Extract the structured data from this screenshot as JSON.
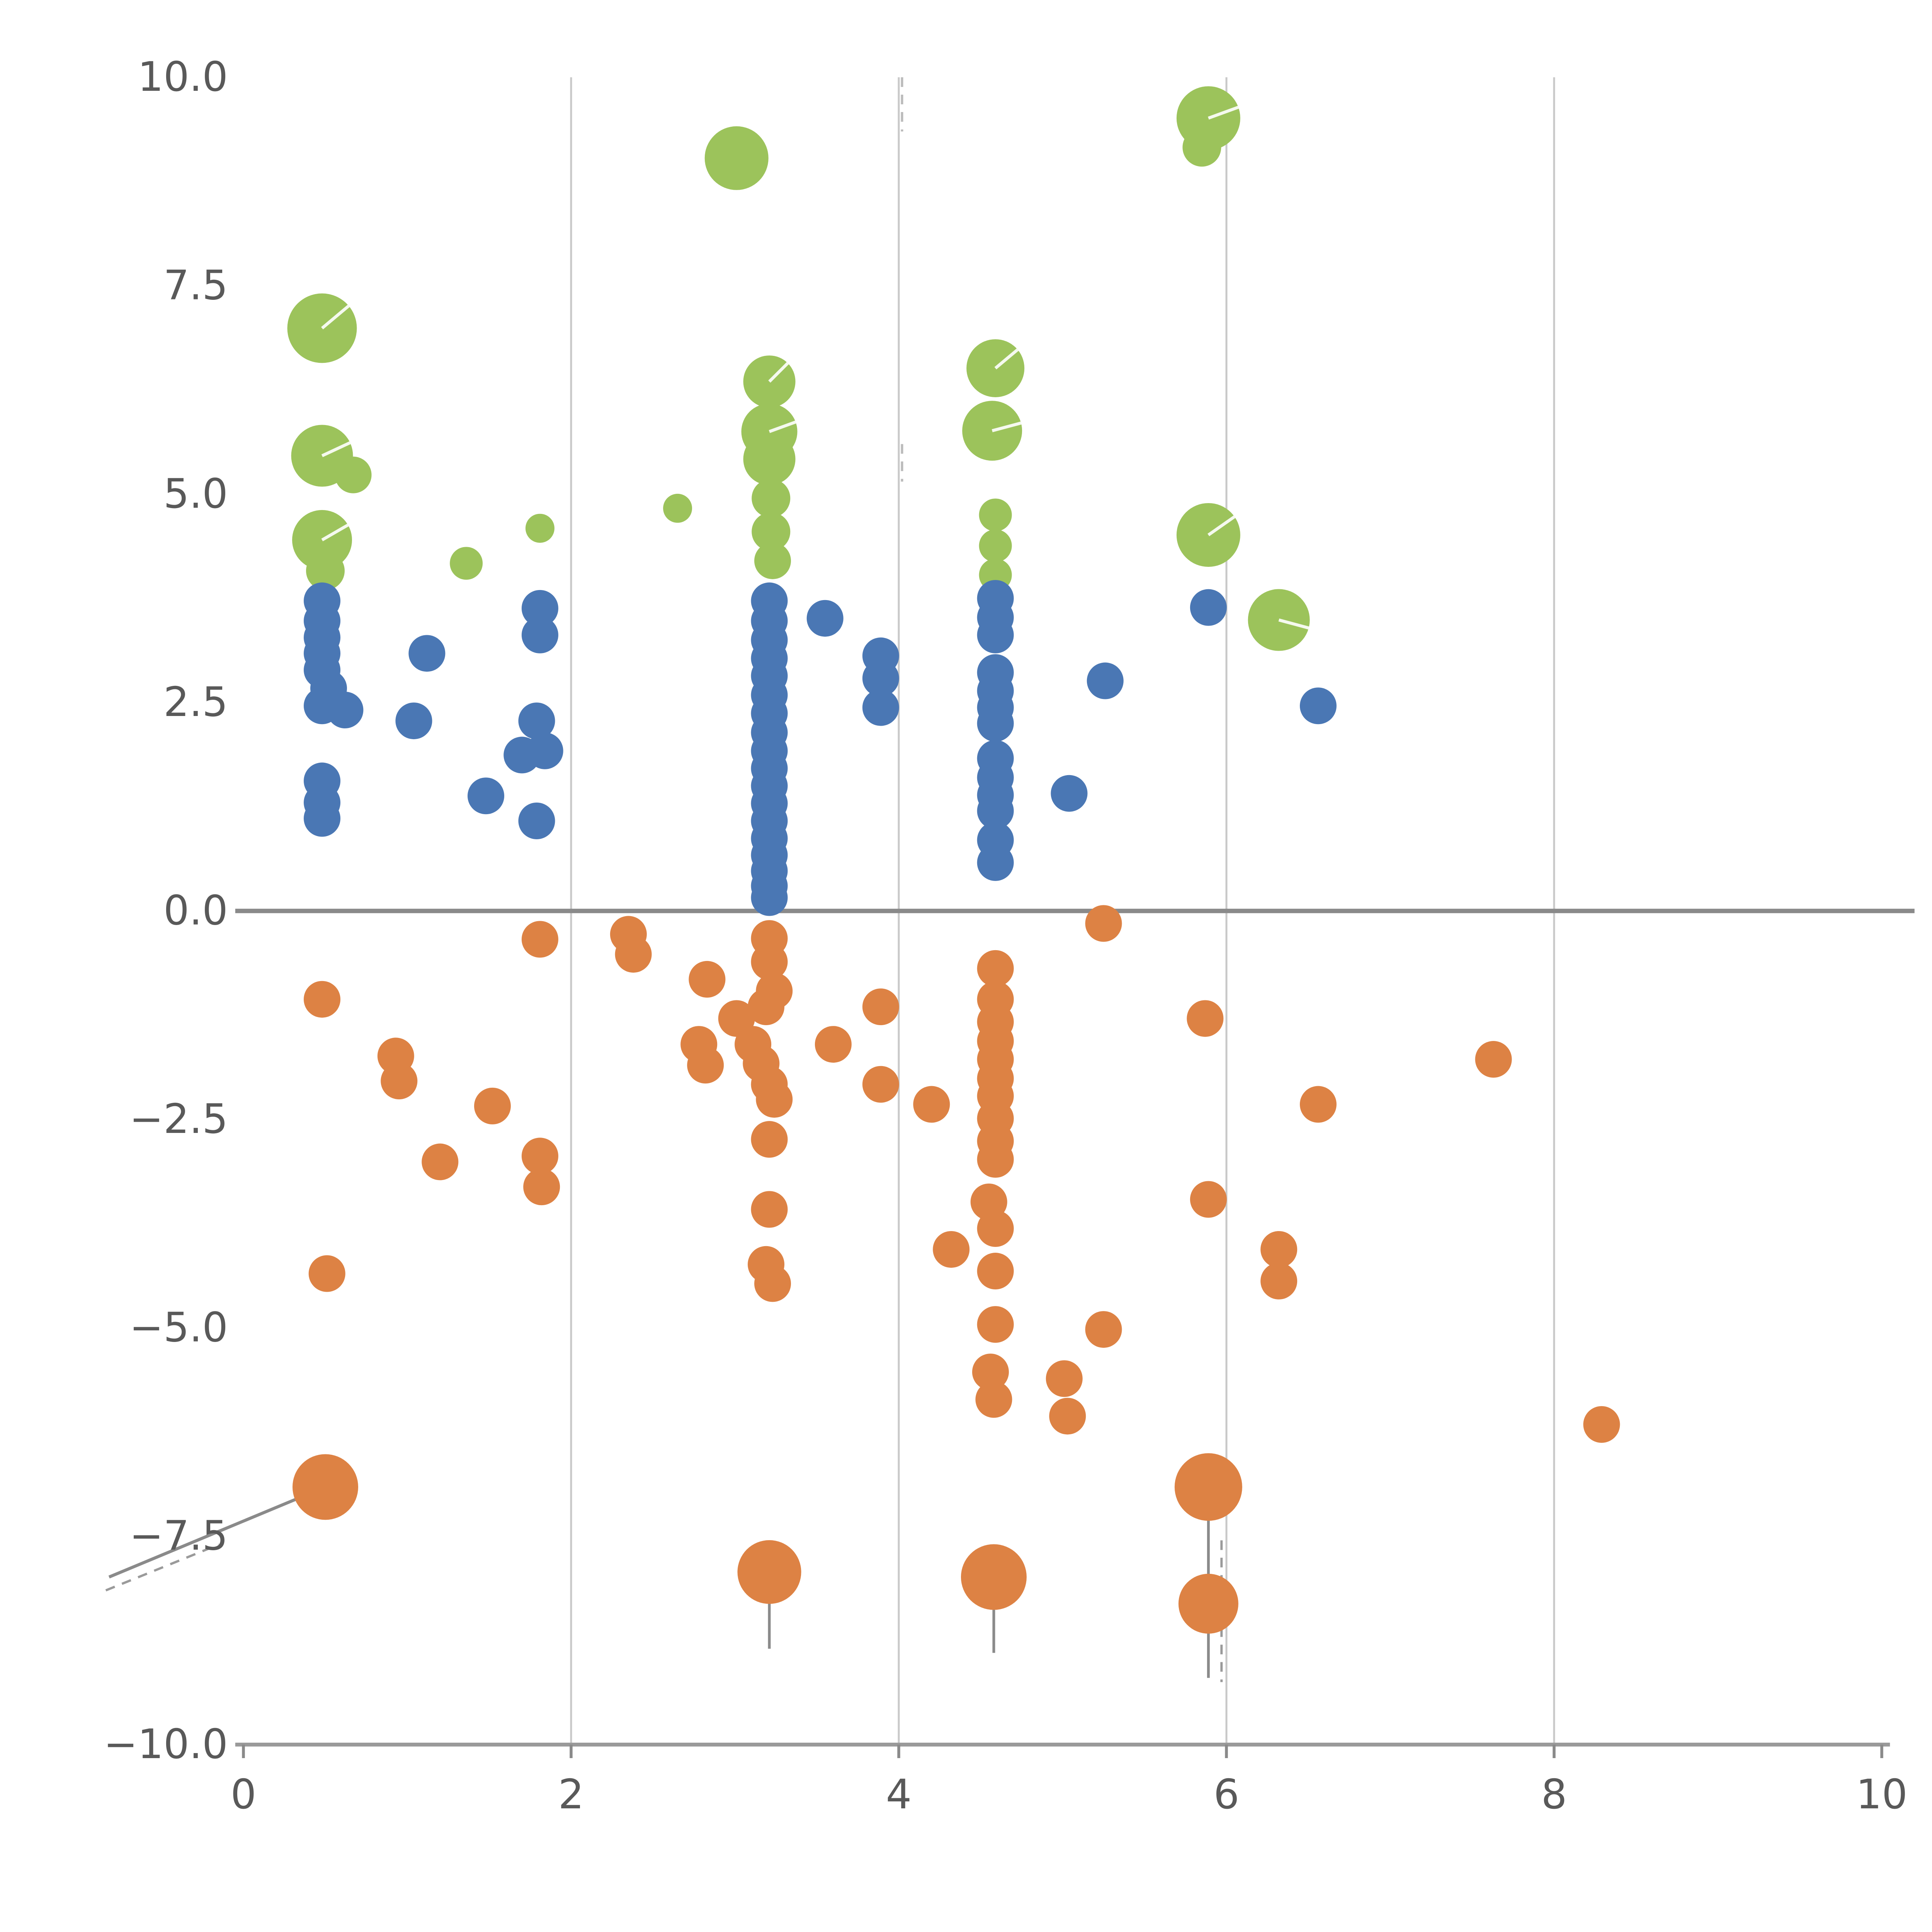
{
  "chart_data": {
    "type": "scatter",
    "title": "",
    "xlabel": "",
    "ylabel": "",
    "xlim": [
      0,
      10
    ],
    "ylim": [
      -10,
      10
    ],
    "x_ticks": [
      0,
      2,
      4,
      6,
      8,
      10
    ],
    "x_tick_labels": [
      "0",
      "2",
      "4",
      "6",
      "8",
      "10"
    ],
    "y_ticks": [
      10.0,
      7.5,
      5.0,
      2.5,
      0.0,
      -2.5,
      -5.0,
      -7.5,
      -10.0
    ],
    "y_tick_labels": [
      "10.0",
      "7.5",
      "5.0",
      "2.5",
      "0.0",
      "−2.5",
      "−5.0",
      "−7.5",
      "−10.0"
    ],
    "legend": "none",
    "grid": {
      "x_lines": [
        2,
        4,
        6,
        8
      ],
      "color": "#c9c9c9",
      "width": 1.0
    },
    "zero_line": {
      "y": 0,
      "x_start": -0.05,
      "x_end": 10.2,
      "color": "#8a8a8a",
      "width": 2.3
    },
    "axis": {
      "spine_color": "#9a9a9a",
      "spine_width": 2.0,
      "tick_color": "#8a8a8a",
      "tick_length": 7,
      "label_color": "#595959",
      "label_size": 21
    },
    "point_format": "[x, y, radius?, notch_angle_deg?]",
    "series": [
      {
        "name": "green-bubbles",
        "color": "#9cc35b",
        "r_default": 9.5,
        "points": [
          [
            0.48,
            6.99,
            18,
            40
          ],
          [
            0.48,
            5.46,
            16,
            25
          ],
          [
            0.67,
            5.23,
            9.5
          ],
          [
            0.48,
            4.45,
            15.5,
            30
          ],
          [
            0.5,
            4.08,
            10
          ],
          [
            1.36,
            4.17,
            8.5
          ],
          [
            1.81,
            4.59,
            7.5
          ],
          [
            2.65,
            4.83,
            7.5
          ],
          [
            3.01,
            9.03,
            16.5
          ],
          [
            3.21,
            6.35,
            13.5,
            45
          ],
          [
            3.21,
            5.75,
            14.5,
            20
          ],
          [
            3.21,
            5.42,
            13.5
          ],
          [
            3.22,
            4.95,
            10
          ],
          [
            3.22,
            4.55,
            10
          ],
          [
            3.23,
            4.2,
            9.5
          ],
          [
            4.59,
            6.51,
            15,
            40
          ],
          [
            4.57,
            5.76,
            15.5,
            15
          ],
          [
            4.59,
            4.75,
            8.5
          ],
          [
            4.59,
            4.38,
            8.5
          ],
          [
            4.59,
            4.03,
            8.5
          ],
          [
            5.89,
            9.51,
            16.5,
            20
          ],
          [
            5.85,
            9.16,
            10
          ],
          [
            5.89,
            4.51,
            16.5,
            35
          ],
          [
            6.32,
            3.49,
            16,
            -15
          ]
        ]
      },
      {
        "name": "blue-dots",
        "color": "#4a77b4",
        "r_default": 9.5,
        "points": [
          [
            0.48,
            3.72
          ],
          [
            0.48,
            3.48
          ],
          [
            0.48,
            3.28
          ],
          [
            0.48,
            3.09
          ],
          [
            0.48,
            2.89
          ],
          [
            0.52,
            2.67
          ],
          [
            0.48,
            2.46
          ],
          [
            0.62,
            2.41
          ],
          [
            0.48,
            1.56
          ],
          [
            0.48,
            1.3
          ],
          [
            0.48,
            1.11
          ],
          [
            1.12,
            3.09
          ],
          [
            1.04,
            2.28
          ],
          [
            1.48,
            1.38
          ],
          [
            1.81,
            3.63
          ],
          [
            1.81,
            3.31
          ],
          [
            1.79,
            2.28
          ],
          [
            1.7,
            1.87
          ],
          [
            1.84,
            1.92
          ],
          [
            1.79,
            1.08
          ],
          [
            3.21,
            3.72
          ],
          [
            3.21,
            3.48
          ],
          [
            3.21,
            3.25
          ],
          [
            3.21,
            3.03
          ],
          [
            3.21,
            2.82
          ],
          [
            3.21,
            2.59
          ],
          [
            3.21,
            2.37
          ],
          [
            3.21,
            2.14
          ],
          [
            3.21,
            1.92
          ],
          [
            3.21,
            1.71
          ],
          [
            3.21,
            1.5
          ],
          [
            3.21,
            1.29
          ],
          [
            3.21,
            1.08
          ],
          [
            3.21,
            0.87
          ],
          [
            3.21,
            0.67
          ],
          [
            3.21,
            0.48
          ],
          [
            3.21,
            0.3
          ],
          [
            3.21,
            0.16
          ],
          [
            3.55,
            3.51
          ],
          [
            3.89,
            3.06
          ],
          [
            3.89,
            2.79
          ],
          [
            3.89,
            2.44
          ],
          [
            4.59,
            3.75
          ],
          [
            4.59,
            3.52
          ],
          [
            4.59,
            3.31
          ],
          [
            4.59,
            2.86
          ],
          [
            4.59,
            2.64
          ],
          [
            4.59,
            2.44
          ],
          [
            4.59,
            2.25
          ],
          [
            4.59,
            1.83
          ],
          [
            4.59,
            1.6
          ],
          [
            4.59,
            1.39
          ],
          [
            4.59,
            1.2
          ],
          [
            4.59,
            0.85
          ],
          [
            4.59,
            0.58
          ],
          [
            5.04,
            1.41
          ],
          [
            5.26,
            2.76
          ],
          [
            5.89,
            3.64
          ],
          [
            6.56,
            2.46
          ]
        ]
      },
      {
        "name": "orange-dots",
        "color": "#dd8244",
        "r_default": 9.5,
        "points": [
          [
            0.48,
            -1.06
          ],
          [
            0.51,
            -4.35
          ],
          [
            0.5,
            -6.91,
            17
          ],
          [
            0.93,
            -1.74
          ],
          [
            0.95,
            -2.04
          ],
          [
            1.2,
            -3.01
          ],
          [
            1.52,
            -2.34
          ],
          [
            1.81,
            -0.34
          ],
          [
            1.81,
            -2.94
          ],
          [
            1.82,
            -3.31
          ],
          [
            2.35,
            -0.28
          ],
          [
            2.38,
            -0.52
          ],
          [
            2.83,
            -0.82
          ],
          [
            2.78,
            -1.6
          ],
          [
            2.82,
            -1.85
          ],
          [
            3.01,
            -1.29
          ],
          [
            3.21,
            -0.33
          ],
          [
            3.21,
            -0.61
          ],
          [
            3.24,
            -0.96
          ],
          [
            3.19,
            -1.15
          ],
          [
            3.11,
            -1.6
          ],
          [
            3.16,
            -1.83
          ],
          [
            3.21,
            -2.08
          ],
          [
            3.24,
            -2.26
          ],
          [
            3.21,
            -2.74
          ],
          [
            3.21,
            -3.58
          ],
          [
            3.19,
            -4.24
          ],
          [
            3.23,
            -4.47
          ],
          [
            3.21,
            -7.93,
            16.5
          ],
          [
            3.6,
            -1.6
          ],
          [
            3.89,
            -1.15
          ],
          [
            3.89,
            -2.08
          ],
          [
            4.2,
            -2.32
          ],
          [
            4.32,
            -4.06
          ],
          [
            4.59,
            -0.69
          ],
          [
            4.59,
            -1.06
          ],
          [
            4.59,
            -1.33
          ],
          [
            4.59,
            -1.56
          ],
          [
            4.59,
            -1.78
          ],
          [
            4.59,
            -2.01
          ],
          [
            4.59,
            -2.22
          ],
          [
            4.59,
            -2.49
          ],
          [
            4.59,
            -2.76
          ],
          [
            4.59,
            -2.98
          ],
          [
            4.55,
            -3.49
          ],
          [
            4.59,
            -3.81
          ],
          [
            4.59,
            -4.32
          ],
          [
            4.59,
            -4.96
          ],
          [
            4.56,
            -5.53
          ],
          [
            4.58,
            -5.86
          ],
          [
            4.58,
            -7.99,
            17
          ],
          [
            5.01,
            -5.61
          ],
          [
            5.03,
            -6.06
          ],
          [
            5.25,
            -0.15
          ],
          [
            5.25,
            -5.02
          ],
          [
            5.87,
            -1.29
          ],
          [
            5.89,
            -3.46
          ],
          [
            5.89,
            -6.91,
            17.5
          ],
          [
            5.89,
            -8.31,
            15.5
          ],
          [
            6.32,
            -4.06
          ],
          [
            6.32,
            -4.44
          ],
          [
            6.56,
            -2.32
          ],
          [
            7.63,
            -1.78
          ],
          [
            8.29,
            -6.16
          ]
        ]
      }
    ],
    "annotation_lines": [
      {
        "x1": 3.21,
        "y1": -7.93,
        "x2": 3.21,
        "y2": -8.85,
        "w": 1.4,
        "dash": "",
        "color": "#8a8a8a"
      },
      {
        "x1": 4.58,
        "y1": -7.99,
        "x2": 4.58,
        "y2": -8.9,
        "w": 1.4,
        "dash": "",
        "color": "#8a8a8a"
      },
      {
        "x1": 5.89,
        "y1": -6.91,
        "x2": 5.89,
        "y2": -9.2,
        "w": 1.4,
        "dash": "",
        "color": "#8a8a8a"
      },
      {
        "x1": 5.97,
        "y1": -7.55,
        "x2": 5.97,
        "y2": -9.25,
        "w": 1.2,
        "dash": "5,4",
        "color": "#9a9a9a"
      },
      {
        "x1": -0.82,
        "y1": -7.99,
        "x2": 0.5,
        "y2": -6.91,
        "w": 1.6,
        "dash": "",
        "color": "#8a8a8a"
      },
      {
        "x1": -0.84,
        "y1": -8.15,
        "x2": -0.15,
        "y2": -7.6,
        "w": 1.2,
        "dash": "5,4",
        "color": "#9a9a9a"
      },
      {
        "x1": 4.02,
        "y1": 10.0,
        "x2": 4.02,
        "y2": 9.35,
        "w": 1.2,
        "dash": "5,4",
        "color": "#bbbbbb"
      },
      {
        "x1": 4.02,
        "y1": 5.6,
        "x2": 4.02,
        "y2": 5.15,
        "w": 1.2,
        "dash": "5,4",
        "color": "#bbbbbb"
      }
    ]
  }
}
